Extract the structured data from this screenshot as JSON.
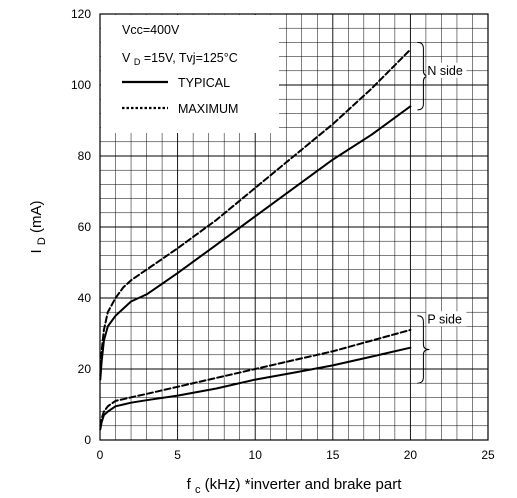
{
  "chart_data": {
    "type": "line",
    "title": "",
    "xlabel": {
      "main": "f",
      "sub": "c",
      "rest": " (kHz) *inverter and brake part"
    },
    "ylabel": {
      "main": "I",
      "sub": "D",
      "rest": " (mA)"
    },
    "xlim": [
      0,
      25
    ],
    "ylim": [
      0,
      120
    ],
    "x_ticks": [
      0,
      5,
      10,
      15,
      20,
      25
    ],
    "y_ticks": [
      0,
      20,
      40,
      60,
      80,
      100,
      120
    ],
    "grid": {
      "major_x": 5,
      "major_y": 20,
      "minor_x": 1,
      "minor_y": 4
    },
    "legend": {
      "conditions": [
        {
          "main": "Vcc=400V",
          "sub": "",
          "rest": ""
        },
        {
          "main": "V",
          "sub": "D",
          "rest": "=15V, Tvj=125°C"
        }
      ],
      "entries": [
        {
          "label": "TYPICAL",
          "style": "solid"
        },
        {
          "label": "MAXIMUM",
          "style": "dotted"
        }
      ],
      "placement": "top-left"
    },
    "annotations": [
      {
        "text": "N side",
        "brace_y": [
          93,
          112
        ],
        "label_y": 104
      },
      {
        "text": "P side",
        "brace_y": [
          16,
          35
        ],
        "label_y": 34
      }
    ],
    "series": [
      {
        "group": "N side",
        "style": "dashed",
        "x": [
          0.02,
          0.1,
          0.25,
          0.5,
          1,
          1.5,
          2,
          3,
          4,
          5,
          7.5,
          10,
          12.5,
          15,
          17.5,
          20
        ],
        "y": [
          18,
          25,
          31,
          36,
          40,
          43,
          45,
          48,
          51,
          54,
          62,
          71,
          80,
          89,
          99,
          110
        ]
      },
      {
        "group": "N side",
        "style": "solid",
        "x": [
          0.02,
          0.1,
          0.25,
          0.5,
          1,
          1.5,
          2,
          3,
          4,
          5,
          7.5,
          10,
          12.5,
          15,
          17.5,
          20
        ],
        "y": [
          17,
          22,
          28,
          32,
          35,
          37,
          39,
          41,
          44,
          47,
          55,
          63,
          71,
          79,
          86,
          94
        ]
      },
      {
        "group": "P side",
        "style": "dashed",
        "x": [
          0.02,
          0.1,
          0.25,
          0.5,
          1,
          1.5,
          2,
          3,
          5,
          7.5,
          10,
          12.5,
          15,
          17.5,
          20
        ],
        "y": [
          4,
          6,
          8,
          9.5,
          11,
          11.5,
          12,
          13,
          15,
          17.5,
          20,
          22.5,
          25,
          28,
          31
        ]
      },
      {
        "group": "P side",
        "style": "solid",
        "x": [
          0.02,
          0.1,
          0.25,
          0.5,
          1,
          1.5,
          2,
          3,
          5,
          7.5,
          10,
          12.5,
          15,
          17.5,
          20
        ],
        "y": [
          3,
          5,
          7,
          8,
          9.5,
          10,
          10.5,
          11.2,
          12.5,
          14.5,
          17,
          19,
          21,
          23.5,
          26
        ]
      }
    ]
  }
}
